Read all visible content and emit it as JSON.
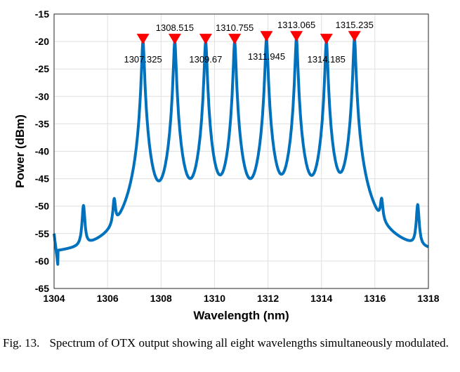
{
  "chart_data": {
    "type": "line",
    "xlabel": "Wavelength (nm)",
    "ylabel": "Power (dBm)",
    "xlim": [
      1304,
      1318
    ],
    "ylim": [
      -65,
      -15
    ],
    "xticks": [
      1304,
      1306,
      1308,
      1310,
      1312,
      1314,
      1316,
      1318
    ],
    "yticks": [
      -15,
      -20,
      -25,
      -30,
      -35,
      -40,
      -45,
      -50,
      -55,
      -60,
      -65
    ],
    "grid": true,
    "line_color": "#0072bd",
    "marker_color": "#ff0000",
    "floor": -59.5,
    "peaks": [
      {
        "wavelength": 1307.325,
        "power": -20.0,
        "label": "1307.325",
        "label_pos": "below"
      },
      {
        "wavelength": 1308.515,
        "power": -20.0,
        "label": "1308.515",
        "label_pos": "above"
      },
      {
        "wavelength": 1309.67,
        "power": -20.0,
        "label": "1309.67",
        "label_pos": "below"
      },
      {
        "wavelength": 1310.755,
        "power": -20.0,
        "label": "1310.755",
        "label_pos": "above"
      },
      {
        "wavelength": 1311.945,
        "power": -19.5,
        "label": "1311.945",
        "label_pos": "below"
      },
      {
        "wavelength": 1313.065,
        "power": -19.5,
        "label": "1313.065",
        "label_pos": "above"
      },
      {
        "wavelength": 1314.185,
        "power": -20.0,
        "label": "1314.185",
        "label_pos": "below"
      },
      {
        "wavelength": 1315.235,
        "power": -19.5,
        "label": "1315.235",
        "label_pos": "above"
      }
    ],
    "side_modes": [
      {
        "wavelength": 1305.1,
        "power": -50.8
      },
      {
        "wavelength": 1306.25,
        "power": -50.5
      },
      {
        "wavelength": 1316.25,
        "power": -51.0
      },
      {
        "wavelength": 1317.6,
        "power": -50.6
      }
    ]
  },
  "caption": {
    "figure_number": "Fig. 13.",
    "text": "Spectrum of OTX output showing all eight wavelengths simultaneously modulated."
  }
}
